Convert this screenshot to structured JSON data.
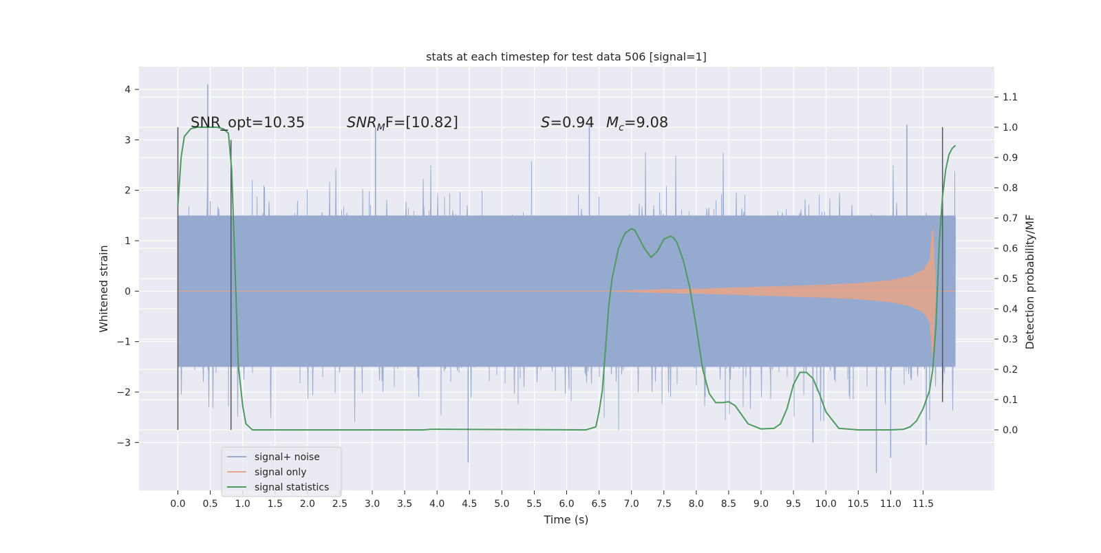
{
  "chart_data": {
    "type": "line",
    "title": "stats at each timestep for test data 506 [signal=1]",
    "xlabel": "Time (s)",
    "ylabel": "Whitened strain",
    "ylabel_right": "Detection probability/MF",
    "xlim": [
      -0.6,
      12.6
    ],
    "ylim": [
      -3.95,
      4.45
    ],
    "ylim_right": [
      -0.2,
      1.2
    ],
    "x_ticks": [
      0.0,
      0.5,
      1.0,
      1.5,
      2.0,
      2.5,
      3.0,
      3.5,
      4.0,
      4.5,
      5.0,
      5.5,
      6.0,
      6.5,
      7.0,
      7.5,
      8.0,
      8.5,
      9.0,
      9.5,
      10.0,
      10.5,
      11.0,
      11.5
    ],
    "x_tick_labels": [
      "0.0",
      "0.5",
      "1.0",
      "1.5",
      "2.0",
      "2.5",
      "3.0",
      "3.5",
      "4.0",
      "4.5",
      "5.0",
      "5.5",
      "6.0",
      "6.5",
      "7.0",
      "7.5",
      "8.0",
      "8.5",
      "9.0",
      "9.5",
      "10.0",
      "10.5",
      "11.0",
      "11.5"
    ],
    "y_ticks": [
      -3,
      -2,
      -1,
      0,
      1,
      2,
      3,
      4
    ],
    "y_tick_labels": [
      "−3",
      "−2",
      "−1",
      "0",
      "1",
      "2",
      "3",
      "4"
    ],
    "y_right_ticks": [
      0.0,
      0.1,
      0.2,
      0.3,
      0.4,
      0.5,
      0.6,
      0.7,
      0.8,
      0.9,
      1.0,
      1.1
    ],
    "y_right_tick_labels": [
      "0.0",
      "0.1",
      "0.2",
      "0.3",
      "0.4",
      "0.5",
      "0.6",
      "0.7",
      "0.8",
      "0.9",
      "1.0",
      "1.1"
    ],
    "grid": true,
    "legend_position": "lower-left",
    "annotations": {
      "snr_opt": "SNR_opt=10.35",
      "snr_mf": "SNR",
      "snr_mf_sub": "M",
      "snr_mf_rest": "F=[10.82]",
      "s_label": "S",
      "s_value": "=0.94",
      "mc_label": "M",
      "mc_sub": "c",
      "mc_value": "=9.08"
    },
    "vertical_markers": [
      {
        "x": 0.0,
        "y_range": [
          -2.75,
          3.25
        ]
      },
      {
        "x": 0.82,
        "y_range": [
          -2.75,
          3.0
        ]
      },
      {
        "x": 11.8,
        "y_range": [
          -2.2,
          3.25
        ]
      }
    ],
    "series": [
      {
        "name": "signal+ noise",
        "axis": "left",
        "color": "#96a9cf",
        "x_range": [
          0.0,
          12.0
        ],
        "typical_band": [
          -1.5,
          1.5
        ],
        "excursion_range": [
          -2.9,
          3.1
        ],
        "notable_peaks": [
          {
            "x": 0.46,
            "y": 4.1
          },
          {
            "x": 3.05,
            "y": 3.25
          },
          {
            "x": 6.35,
            "y": 3.3
          },
          {
            "x": 11.25,
            "y": 3.3
          },
          {
            "x": 4.48,
            "y": -3.4
          },
          {
            "x": 10.78,
            "y": -3.6
          },
          {
            "x": 11.0,
            "y": -3.3
          },
          {
            "x": 9.8,
            "y": -3.0
          },
          {
            "x": 11.55,
            "y": -3.05
          }
        ]
      },
      {
        "name": "signal only",
        "axis": "left",
        "color": "#e8a58a",
        "envelope": {
          "x": [
            0.0,
            6.5,
            7.0,
            7.5,
            8.0,
            8.5,
            9.0,
            9.5,
            10.0,
            10.5,
            11.0,
            11.3,
            11.5,
            11.6,
            11.65,
            11.7,
            12.0
          ],
          "amplitude": [
            0.0,
            0.0,
            0.02,
            0.04,
            0.05,
            0.07,
            0.09,
            0.11,
            0.13,
            0.16,
            0.22,
            0.3,
            0.42,
            0.62,
            1.45,
            0.0,
            0.0
          ]
        }
      },
      {
        "name": "signal statistics",
        "axis": "right",
        "color": "#4c9a5e",
        "x": [
          0.0,
          0.05,
          0.1,
          0.2,
          0.3,
          0.5,
          0.6,
          0.7,
          0.78,
          0.83,
          0.88,
          0.93,
          1.0,
          1.05,
          1.15,
          3.8,
          3.9,
          6.3,
          6.45,
          6.5,
          6.55,
          6.6,
          6.65,
          6.7,
          6.8,
          6.9,
          7.0,
          7.05,
          7.1,
          7.2,
          7.3,
          7.4,
          7.5,
          7.6,
          7.65,
          7.7,
          7.8,
          7.9,
          8.0,
          8.1,
          8.2,
          8.3,
          8.4,
          8.5,
          8.6,
          8.7,
          8.8,
          9.0,
          9.2,
          9.3,
          9.4,
          9.5,
          9.6,
          9.7,
          9.8,
          9.9,
          10.0,
          10.2,
          10.5,
          11.0,
          11.2,
          11.3,
          11.4,
          11.5,
          11.6,
          11.65,
          11.7,
          11.75,
          11.8,
          11.85,
          11.9,
          11.95,
          12.0
        ],
        "values": [
          0.74,
          0.9,
          0.97,
          0.995,
          1.0,
          1.0,
          1.0,
          0.995,
          0.98,
          0.86,
          0.55,
          0.22,
          0.08,
          0.02,
          0.0,
          0.0,
          0.002,
          0.0,
          0.01,
          0.06,
          0.13,
          0.27,
          0.41,
          0.5,
          0.6,
          0.65,
          0.665,
          0.66,
          0.64,
          0.6,
          0.57,
          0.59,
          0.63,
          0.64,
          0.635,
          0.62,
          0.56,
          0.47,
          0.34,
          0.2,
          0.12,
          0.09,
          0.09,
          0.093,
          0.08,
          0.05,
          0.02,
          0.003,
          0.005,
          0.02,
          0.07,
          0.15,
          0.19,
          0.19,
          0.17,
          0.12,
          0.06,
          0.005,
          0.0,
          0.0,
          0.002,
          0.01,
          0.03,
          0.07,
          0.13,
          0.2,
          0.35,
          0.62,
          0.77,
          0.86,
          0.91,
          0.93,
          0.94
        ]
      }
    ]
  }
}
